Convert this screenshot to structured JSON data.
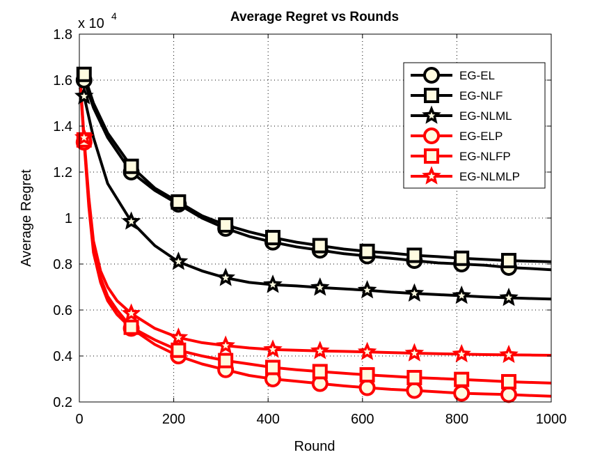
{
  "chart_data": {
    "type": "line",
    "title": "Average Regret vs Rounds",
    "xlabel": "Round",
    "ylabel": "Average Regret",
    "y_multiplier_label": "x 10",
    "y_multiplier_exponent": "4",
    "xlim": [
      0,
      1000
    ],
    "ylim": [
      0.2,
      1.8
    ],
    "xticks": [
      0,
      200,
      400,
      600,
      800,
      1000
    ],
    "xtick_labels": [
      "0",
      "200",
      "400",
      "600",
      "800",
      "1000"
    ],
    "yticks": [
      0.2,
      0.4,
      0.6,
      0.8,
      1.0,
      1.2,
      1.4,
      1.6,
      1.8
    ],
    "ytick_labels": [
      "0.2",
      "0.4",
      "0.6",
      "0.8",
      "1",
      "1.2",
      "1.4",
      "1.6",
      "1.8"
    ],
    "grid": true,
    "legend_position": "top-right",
    "series": [
      {
        "name": "EG-EL",
        "color": "#000000",
        "marker": "circle",
        "x": [
          1,
          10,
          30,
          60,
          110,
          160,
          210,
          260,
          310,
          360,
          410,
          460,
          510,
          560,
          610,
          660,
          710,
          760,
          810,
          860,
          910,
          960,
          1000
        ],
        "y": [
          1.56,
          1.6,
          1.48,
          1.35,
          1.2,
          1.12,
          1.06,
          1.0,
          0.955,
          0.92,
          0.895,
          0.875,
          0.86,
          0.845,
          0.835,
          0.825,
          0.815,
          0.805,
          0.8,
          0.795,
          0.785,
          0.78,
          0.775
        ],
        "markers_x": [
          10,
          110,
          210,
          310,
          410,
          510,
          610,
          710,
          810,
          910
        ]
      },
      {
        "name": "EG-NLF",
        "color": "#000000",
        "marker": "square",
        "x": [
          1,
          10,
          30,
          60,
          110,
          160,
          210,
          260,
          310,
          360,
          410,
          460,
          510,
          560,
          610,
          660,
          710,
          760,
          810,
          860,
          910,
          960,
          1000
        ],
        "y": [
          1.58,
          1.625,
          1.5,
          1.37,
          1.225,
          1.13,
          1.07,
          1.01,
          0.97,
          0.94,
          0.915,
          0.895,
          0.88,
          0.865,
          0.855,
          0.848,
          0.838,
          0.832,
          0.825,
          0.82,
          0.815,
          0.812,
          0.81
        ],
        "markers_x": [
          10,
          110,
          210,
          310,
          410,
          510,
          610,
          710,
          810,
          910
        ]
      },
      {
        "name": "EG-NLML",
        "color": "#000000",
        "marker": "star",
        "x": [
          1,
          10,
          30,
          60,
          110,
          160,
          210,
          260,
          310,
          360,
          410,
          460,
          510,
          560,
          610,
          660,
          710,
          760,
          810,
          860,
          910,
          960,
          1000
        ],
        "y": [
          1.52,
          1.53,
          1.35,
          1.15,
          0.985,
          0.88,
          0.81,
          0.77,
          0.74,
          0.72,
          0.71,
          0.705,
          0.698,
          0.692,
          0.686,
          0.678,
          0.672,
          0.667,
          0.662,
          0.657,
          0.653,
          0.65,
          0.648
        ],
        "markers_x": [
          10,
          110,
          210,
          310,
          410,
          510,
          610,
          710,
          810,
          910
        ]
      },
      {
        "name": "EG-ELP",
        "color": "#ff0000",
        "marker": "circle",
        "x": [
          1,
          3,
          10,
          20,
          30,
          45,
          60,
          80,
          110,
          160,
          210,
          260,
          310,
          360,
          410,
          460,
          510,
          560,
          610,
          660,
          710,
          760,
          810,
          860,
          910,
          960,
          1000
        ],
        "y": [
          1.63,
          1.55,
          1.33,
          1.05,
          0.85,
          0.72,
          0.64,
          0.58,
          0.52,
          0.45,
          0.4,
          0.365,
          0.34,
          0.315,
          0.3,
          0.29,
          0.28,
          0.27,
          0.262,
          0.255,
          0.25,
          0.244,
          0.238,
          0.235,
          0.232,
          0.228,
          0.225
        ],
        "markers_x": [
          10,
          110,
          210,
          310,
          410,
          510,
          610,
          710,
          810,
          910
        ]
      },
      {
        "name": "EG-NLFP",
        "color": "#ff0000",
        "marker": "square",
        "x": [
          1,
          3,
          10,
          20,
          30,
          45,
          60,
          80,
          110,
          160,
          210,
          260,
          310,
          360,
          410,
          460,
          510,
          560,
          610,
          660,
          710,
          760,
          810,
          860,
          910,
          960,
          1000
        ],
        "y": [
          1.64,
          1.56,
          1.34,
          1.07,
          0.88,
          0.74,
          0.66,
          0.6,
          0.525,
          0.47,
          0.425,
          0.4,
          0.38,
          0.365,
          0.35,
          0.34,
          0.332,
          0.325,
          0.318,
          0.312,
          0.306,
          0.302,
          0.298,
          0.293,
          0.288,
          0.285,
          0.282
        ],
        "markers_x": [
          10,
          110,
          210,
          310,
          410,
          510,
          610,
          710,
          810,
          910
        ]
      },
      {
        "name": "EG-NLMLP",
        "color": "#ff0000",
        "marker": "star",
        "x": [
          1,
          3,
          10,
          20,
          30,
          45,
          60,
          80,
          110,
          160,
          210,
          260,
          310,
          360,
          410,
          460,
          510,
          560,
          610,
          660,
          710,
          760,
          810,
          860,
          910,
          960,
          1000
        ],
        "y": [
          1.65,
          1.57,
          1.35,
          1.09,
          0.9,
          0.77,
          0.7,
          0.64,
          0.585,
          0.52,
          0.48,
          0.458,
          0.445,
          0.435,
          0.428,
          0.425,
          0.422,
          0.42,
          0.418,
          0.415,
          0.412,
          0.41,
          0.408,
          0.406,
          0.405,
          0.404,
          0.403
        ],
        "markers_x": [
          10,
          110,
          210,
          310,
          410,
          510,
          610,
          710,
          810,
          910
        ]
      }
    ]
  }
}
